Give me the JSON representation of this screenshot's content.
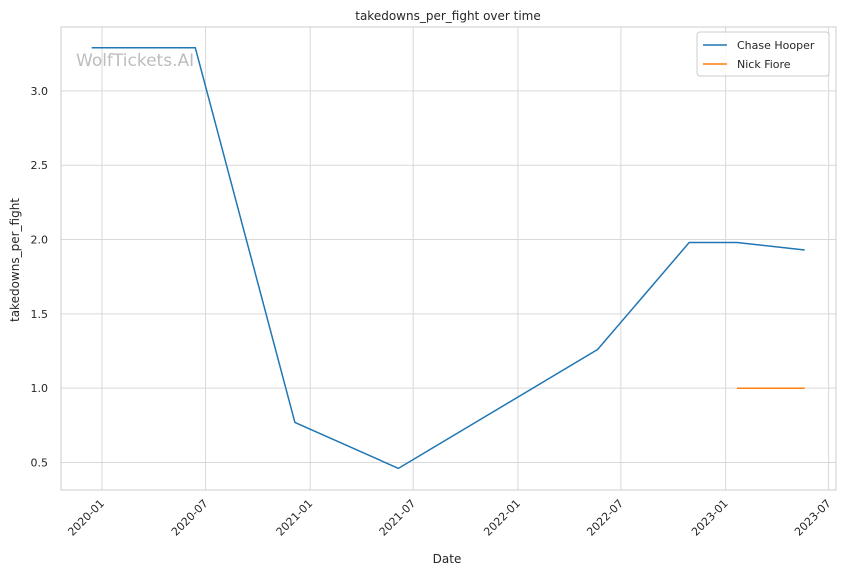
{
  "watermark": "WolfTickets.AI",
  "chart_data": {
    "type": "line",
    "title": "takedowns_per_fight over time",
    "xlabel": "Date",
    "ylabel": "takedowns_per_fight",
    "x_ticks": [
      "2020-01",
      "2020-07",
      "2021-01",
      "2021-07",
      "2022-01",
      "2022-07",
      "2023-01",
      "2023-07"
    ],
    "y_ticks": [
      "0.5",
      "1.0",
      "1.5",
      "2.0",
      "2.5",
      "3.0"
    ],
    "xlim": [
      "2019-10-21",
      "2023-07-14"
    ],
    "ylim": [
      0.315,
      3.43
    ],
    "grid": true,
    "legend_position": "top-right",
    "series": [
      {
        "name": "Chase Hooper",
        "color": "#1f77b4",
        "x": [
          "2019-12-14",
          "2020-06-13",
          "2020-12-05",
          "2021-06-05",
          "2022-05-21",
          "2022-10-29",
          "2023-01-21",
          "2023-05-20"
        ],
        "y": [
          3.29,
          3.29,
          0.77,
          0.46,
          1.26,
          1.98,
          1.98,
          1.93
        ]
      },
      {
        "name": "Nick Fiore",
        "color": "#ff7f0e",
        "x": [
          "2023-01-21",
          "2023-05-20"
        ],
        "y": [
          1.0,
          1.0
        ]
      }
    ]
  }
}
